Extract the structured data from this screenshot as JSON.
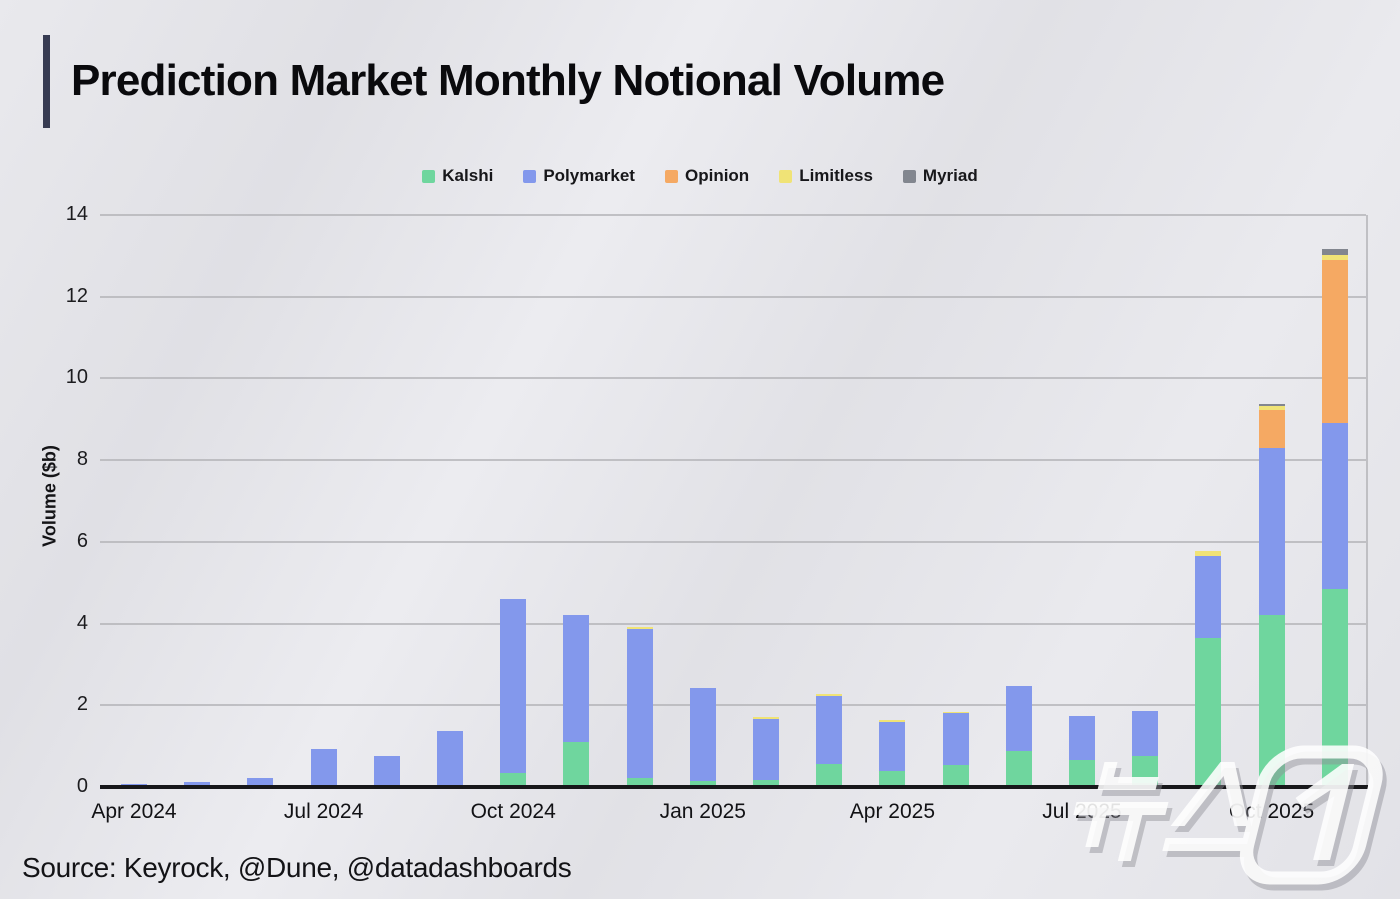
{
  "header": {
    "title": "Prediction Market Monthly Notional Volume"
  },
  "footer": {
    "source": "Source: Keyrock, @Dune, @datadashboards"
  },
  "watermark": {
    "text": "뉴스1"
  },
  "chart_data": {
    "type": "bar",
    "stacked": true,
    "title": "Prediction Market Monthly Notional Volume",
    "xlabel": "",
    "ylabel": "Volume ($b)",
    "ylim": [
      0,
      14
    ],
    "ytick_step": 2,
    "grid": true,
    "legend_position": "top-center",
    "x_tick_every": 3,
    "categories": [
      "Apr 2024",
      "May 2024",
      "Jun 2024",
      "Jul 2024",
      "Aug 2024",
      "Sep 2024",
      "Oct 2024",
      "Nov 2024",
      "Dec 2024",
      "Jan 2025",
      "Feb 2025",
      "Mar 2025",
      "Apr 2025",
      "May 2025",
      "Jun 2025",
      "Jul 2025",
      "Aug 2025",
      "Sep 2025",
      "Oct 2025",
      "Nov 2025"
    ],
    "series": [
      {
        "name": "Kalshi",
        "color": "#6fd69e",
        "values": [
          0,
          0,
          0,
          0,
          0,
          0,
          0.35,
          1.1,
          0.22,
          0.15,
          0.17,
          0.57,
          0.38,
          0.54,
          0.87,
          0.67,
          0.77,
          3.65,
          4.2,
          4.85
        ]
      },
      {
        "name": "Polymarket",
        "color": "#8398ec",
        "values": [
          0.07,
          0.12,
          0.22,
          0.92,
          0.77,
          1.38,
          4.25,
          3.1,
          3.65,
          2.27,
          1.5,
          1.65,
          1.21,
          1.26,
          1.6,
          1.08,
          1.08,
          2.0,
          4.1,
          4.06
        ]
      },
      {
        "name": "Opinion",
        "color": "#f5a963",
        "values": [
          0,
          0,
          0,
          0,
          0,
          0,
          0,
          0,
          0,
          0,
          0,
          0,
          0,
          0,
          0,
          0,
          0,
          0,
          0.93,
          3.99
        ]
      },
      {
        "name": "Limitless",
        "color": "#f0e376",
        "values": [
          0,
          0,
          0,
          0,
          0,
          0,
          0,
          0,
          0.04,
          0,
          0.04,
          0.05,
          0.04,
          0.04,
          0,
          0,
          0,
          0.12,
          0.1,
          0.12
        ]
      },
      {
        "name": "Myriad",
        "color": "#82868f",
        "values": [
          0,
          0,
          0,
          0,
          0,
          0,
          0,
          0,
          0,
          0,
          0,
          0,
          0,
          0,
          0,
          0,
          0,
          0,
          0.05,
          0.15
        ]
      }
    ]
  }
}
